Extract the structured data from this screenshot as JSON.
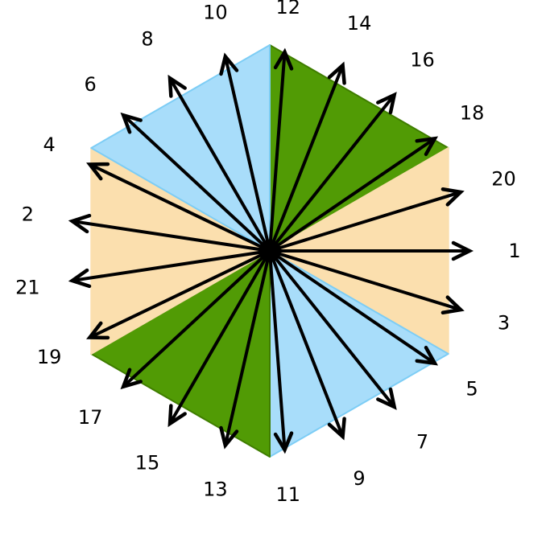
{
  "colors": {
    "light_blue": "#a8ddfa",
    "light_blue_edge": "#7dcdf5",
    "green": "#519b05",
    "green_edge": "#3f7d00",
    "peach": "#fbdfae",
    "arrow": "#000000",
    "center": "#000000"
  },
  "diagram": {
    "shape": "hexagon divided into six triangular sectors",
    "sector_colors": [
      "green",
      "peach",
      "light_blue",
      "green",
      "peach",
      "light_blue"
    ],
    "arrows": [
      {
        "label": "1",
        "angle_deg": 0
      },
      {
        "label": "2",
        "angle_deg": 171.43
      },
      {
        "label": "3",
        "angle_deg": -17.14
      },
      {
        "label": "4",
        "angle_deg": 154.29
      },
      {
        "label": "5",
        "angle_deg": -34.29
      },
      {
        "label": "6",
        "angle_deg": 137.14
      },
      {
        "label": "7",
        "angle_deg": -51.43
      },
      {
        "label": "8",
        "angle_deg": 120
      },
      {
        "label": "9",
        "angle_deg": -68.57
      },
      {
        "label": "10",
        "angle_deg": 102.86
      },
      {
        "label": "11",
        "angle_deg": -85.71
      },
      {
        "label": "12",
        "angle_deg": 85.71
      },
      {
        "label": "13",
        "angle_deg": -102.86
      },
      {
        "label": "14",
        "angle_deg": 68.57
      },
      {
        "label": "15",
        "angle_deg": -120
      },
      {
        "label": "16",
        "angle_deg": 51.43
      },
      {
        "label": "17",
        "angle_deg": -137.14
      },
      {
        "label": "18",
        "angle_deg": 34.29
      },
      {
        "label": "19",
        "angle_deg": -154.29
      },
      {
        "label": "20",
        "angle_deg": 17.14
      },
      {
        "label": "21",
        "angle_deg": -171.43
      }
    ]
  }
}
